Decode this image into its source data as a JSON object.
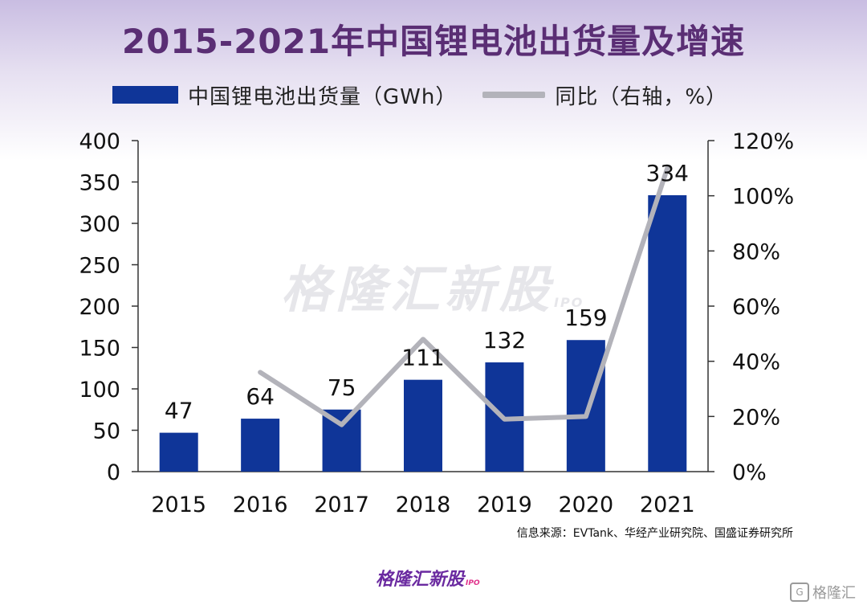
{
  "title": "2015-2021年中国锂电池出货量及增速",
  "legend": {
    "bar_label": "中国锂电池出货量（GWh）",
    "line_label": "同比（右轴，%）"
  },
  "watermark": {
    "main": "格隆汇新股",
    "sub": "IPO"
  },
  "source": "信息来源：EVTank、华经产业研究院、国盛证券研究所",
  "brand_bottom": {
    "main": "格隆汇新股",
    "sub": "IPO"
  },
  "corner_brand": {
    "icon": "G",
    "text": "格隆汇"
  },
  "colors": {
    "bar": "#0f3598",
    "line": "#b3b3ba",
    "title": "#5a2e74"
  },
  "chart_data": {
    "type": "bar",
    "title": "2015-2021年中国锂电池出货量及增速",
    "categories": [
      "2015",
      "2016",
      "2017",
      "2018",
      "2019",
      "2020",
      "2021"
    ],
    "series": [
      {
        "name": "中国锂电池出货量（GWh）",
        "type": "bar",
        "axis": "left",
        "values": [
          47,
          64,
          75,
          111,
          132,
          159,
          334
        ],
        "labels": [
          "47",
          "64",
          "75",
          "111",
          "132",
          "159",
          "334"
        ]
      },
      {
        "name": "同比（右轴，%）",
        "type": "line",
        "axis": "right",
        "values": [
          null,
          36,
          17,
          48,
          19,
          20,
          110
        ]
      }
    ],
    "y_left": {
      "min": 0,
      "max": 400,
      "ticks": [
        "0",
        "50",
        "100",
        "150",
        "200",
        "250",
        "300",
        "350",
        "400"
      ]
    },
    "y_right": {
      "min": 0,
      "max": 120,
      "ticks": [
        "0%",
        "20%",
        "40%",
        "60%",
        "80%",
        "100%",
        "120%"
      ]
    },
    "legend_position": "top-left",
    "grid": false
  }
}
